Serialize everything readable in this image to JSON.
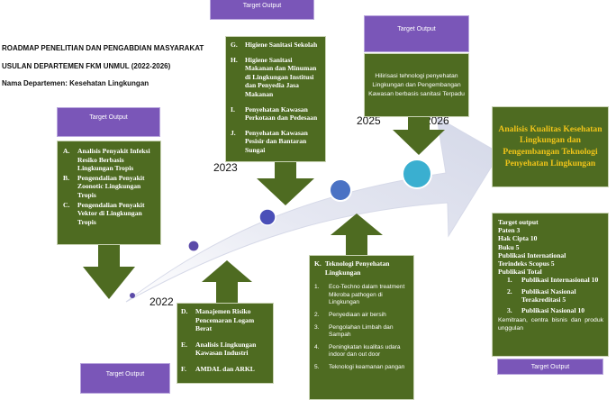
{
  "header": {
    "line1": "ROADMAP PENELITIAN DAN PENGABDIAN MASYARAKAT",
    "line2": "USULAN DEPARTEMEN FKM UNMUL (2022-2026)",
    "line3": "Nama Departemen: Kesehatan Lingkungan"
  },
  "years": {
    "y2022": "2022",
    "y2023": "2023",
    "y2025": "2025",
    "y2026": "2026"
  },
  "target_label": "Target Output",
  "box_2022_top": {
    "items": [
      {
        "letter": "A.",
        "text": "Analisis Penyakit Infeksi Resiko Berbasis Lingkungan  Tropis"
      },
      {
        "letter": "B.",
        "text": "Pengendalian Penyakit Zoonotic Lingkungan Tropis"
      },
      {
        "letter": "C.",
        "text": "Pengendalian Penyakit Vektor di Lingkungan Tropis"
      }
    ]
  },
  "box_2022_bottom": {
    "items": [
      {
        "letter": "D.",
        "text": "Manajemen Risiko Pencemaran Logam Berat"
      },
      {
        "letter": "E.",
        "text": "Analisis Lingkungan Kawasan Industri"
      },
      {
        "letter": "F.",
        "text": "AMDAL dan ARKL"
      }
    ]
  },
  "box_2023": {
    "items": [
      {
        "letter": "G.",
        "text": "Higiene Sanitasi Sekolah"
      },
      {
        "letter": "H.",
        "text": "Higiene Sanitasi Makanan dan Minuman di Lingkungan  Institusi dan Penyedia Jasa Makanan"
      },
      {
        "letter": "I.",
        "text": "Penyehatan Kawasan Perkotaan  dan Pedesaan"
      },
      {
        "letter": "J.",
        "text": "Penyehatan Kawasan Pesisir dan Bantaran Sungai"
      }
    ]
  },
  "box_2024": {
    "heading_letter": "K.",
    "heading": "Teknologi Penyehatan Lingkungan",
    "items": [
      "Eco-Techno dalam treatment Mikroba pathogen di Lingkungan",
      "Penyediaan air bersih",
      "Pengolahan Limbah dan Sampah",
      "Peningkatan kualitas udara indoor dan out door",
      "Teknologi keamanan pangan"
    ]
  },
  "box_2025": {
    "text": "Hilirisasi tehnologi penyehatan Lingkungan dan Pengembangan Kawasan berbasis sanitasi Terpadu"
  },
  "final_goal": {
    "text": "Analisis Kualitas Kesehatan Lingkungan dan Pengembangan Teknologi  Penyehatan Lingkungan"
  },
  "target_summary": {
    "title": "Target output",
    "paten": "Paten 3",
    "haki": "Hak Cipta 10",
    "buku": "Buku 5",
    "pub_int": "Publikasi International",
    "scopus": "Terindeks Scopus 5",
    "pub_total": "Publikasi Total",
    "sub_items": [
      {
        "n": "1.",
        "text": "Publikasi Internasional 10"
      },
      {
        "n": "2.",
        "text": "Publikasi Nasional Terakreditasi 5"
      },
      {
        "n": "3.",
        "text": "Publikasi Nasional 10"
      }
    ],
    "kemitraan": "Kemitraan,   centra   bisnis   dan produk unggulan"
  },
  "colors": {
    "green": "#4e6b21",
    "purple": "#7a56b8",
    "gold": "#f0c419",
    "arrow_band": "#e3e6f1",
    "dot_dark": "#5b4aa8",
    "dot_mid": "#4a72c4",
    "dot_big": "#3aafd0"
  }
}
